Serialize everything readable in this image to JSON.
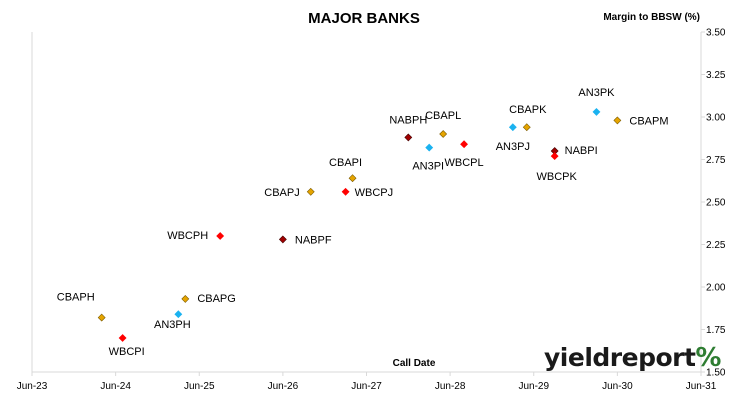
{
  "chart_data": {
    "type": "scatter",
    "title": "MAJOR BANKS",
    "ylabel": "Margin to BBSW (%)",
    "xlabel": "Call Date",
    "x_ticks": [
      "Jun-23",
      "Jun-24",
      "Jun-25",
      "Jun-26",
      "Jun-27",
      "Jun-28",
      "Jun-29",
      "Jun-30",
      "Jun-31"
    ],
    "xlim": [
      "Jun-23",
      "Jun-31"
    ],
    "ylim": [
      1.5,
      3.5
    ],
    "y_ticks": [
      "1.50",
      "1.75",
      "2.00",
      "2.25",
      "2.50",
      "2.75",
      "3.00",
      "3.25",
      "3.50"
    ],
    "grid": {
      "x": false,
      "y": false
    },
    "legend": "none",
    "points": [
      {
        "label": "CBAPH",
        "x": "2024-04",
        "y": 1.82,
        "color": "#e5a400"
      },
      {
        "label": "WBCPI",
        "x": "2024-07",
        "y": 1.7,
        "color": "#ff0000"
      },
      {
        "label": "AN3PH",
        "x": "2025-03",
        "y": 1.84,
        "color": "#1ab2f0"
      },
      {
        "label": "CBAPG",
        "x": "2025-04",
        "y": 1.93,
        "color": "#e5a400"
      },
      {
        "label": "WBCPH",
        "x": "2025-09",
        "y": 2.3,
        "color": "#ff0000"
      },
      {
        "label": "NABPF",
        "x": "2026-06",
        "y": 2.28,
        "color": "#a00000"
      },
      {
        "label": "CBAPJ",
        "x": "2026-10",
        "y": 2.56,
        "color": "#e5a400"
      },
      {
        "label": "WBCPJ",
        "x": "2027-03",
        "y": 2.56,
        "color": "#ff0000"
      },
      {
        "label": "CBAPI",
        "x": "2027-04",
        "y": 2.64,
        "color": "#e5a400"
      },
      {
        "label": "NABPH",
        "x": "2027-12",
        "y": 2.88,
        "color": "#a00000"
      },
      {
        "label": "AN3PI",
        "x": "2028-03",
        "y": 2.82,
        "color": "#1ab2f0"
      },
      {
        "label": "CBAPL",
        "x": "2028-05",
        "y": 2.9,
        "color": "#e5a400"
      },
      {
        "label": "WBCPL",
        "x": "2028-08",
        "y": 2.84,
        "color": "#ff0000"
      },
      {
        "label": "AN3PJ",
        "x": "2029-03",
        "y": 2.94,
        "color": "#1ab2f0"
      },
      {
        "label": "CBAPK",
        "x": "2029-05",
        "y": 2.94,
        "color": "#e5a400"
      },
      {
        "label": "NABPI",
        "x": "2029-09",
        "y": 2.8,
        "color": "#a00000"
      },
      {
        "label": "WBCPK",
        "x": "2029-09",
        "y": 2.77,
        "color": "#ff0000"
      },
      {
        "label": "AN3PK",
        "x": "2030-03",
        "y": 3.03,
        "color": "#1ab2f0"
      },
      {
        "label": "CBAPM",
        "x": "2030-06",
        "y": 2.98,
        "color": "#e5a400"
      }
    ]
  },
  "logo": {
    "text": "yieldreport",
    "symbol": "%"
  }
}
